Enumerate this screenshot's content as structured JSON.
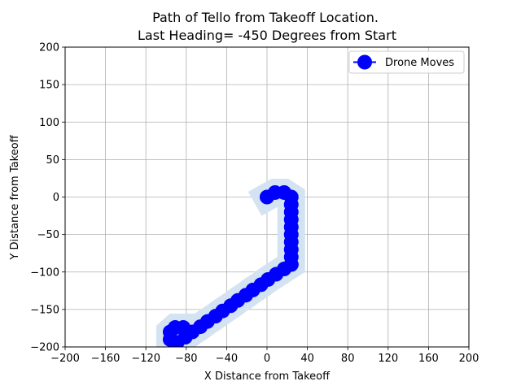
{
  "chart_data": {
    "type": "line",
    "title": "Path of Tello from Takeoff Location.",
    "subtitle": "Last Heading= -450 Degrees from Start",
    "xlabel": "X Distance from Takeoff",
    "ylabel": "Y Distance from Takeoff",
    "xlim": [
      -200,
      200
    ],
    "ylim": [
      -200,
      200
    ],
    "xticks": [
      -200,
      -160,
      -120,
      -80,
      -40,
      0,
      40,
      80,
      120,
      160,
      200
    ],
    "yticks": [
      -200,
      -150,
      -100,
      -50,
      0,
      50,
      100,
      150,
      200
    ],
    "grid": true,
    "legend_position": "top-right",
    "series": [
      {
        "name": "Drone Moves",
        "color": "#0000ff",
        "band_color": "#d4e3f2",
        "marker": "circle",
        "x": [
          0,
          8,
          17,
          24,
          24,
          24,
          24,
          24,
          24,
          24,
          24,
          24,
          24,
          24,
          17,
          9,
          1,
          -6,
          -14,
          -21,
          -29,
          -36,
          -44,
          -51,
          -59,
          -66,
          -74,
          -81,
          -89,
          -96,
          -96,
          -91,
          -83
        ],
        "y": [
          0,
          6,
          6,
          0,
          -10,
          -20,
          -30,
          -40,
          -50,
          -60,
          -70,
          -80,
          -90,
          -90,
          -96,
          -103,
          -110,
          -117,
          -124,
          -131,
          -138,
          -145,
          -152,
          -159,
          -166,
          -173,
          -180,
          -187,
          -194,
          -190,
          -180,
          -174,
          -174
        ]
      }
    ]
  }
}
